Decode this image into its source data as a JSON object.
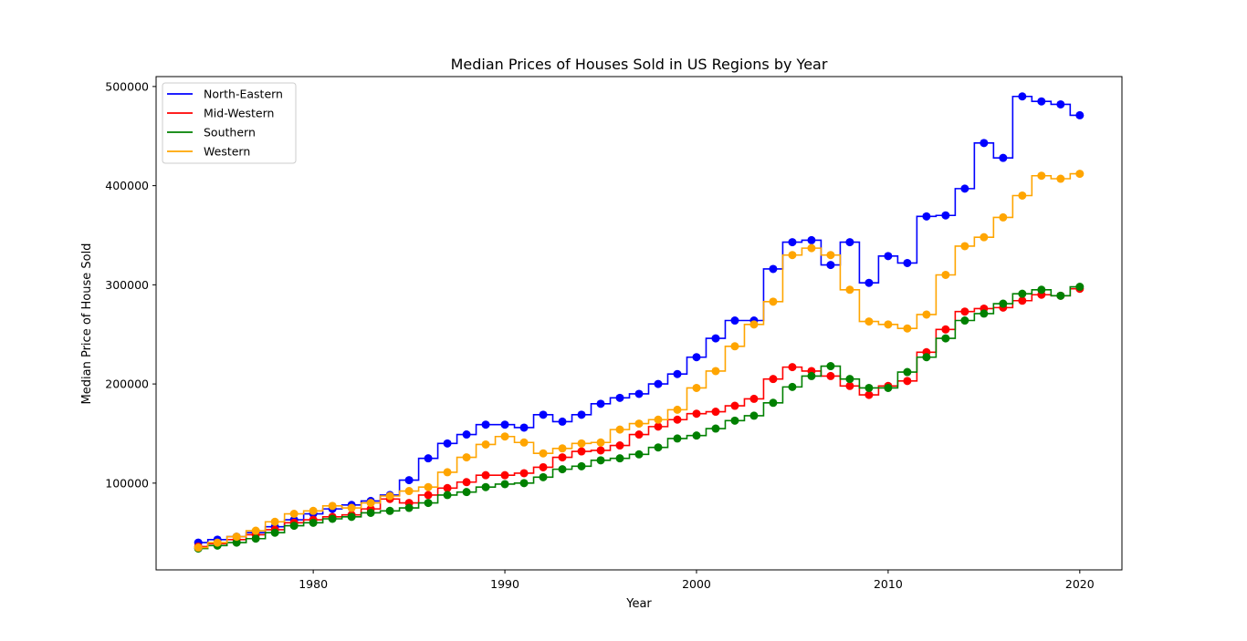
{
  "chart_data": {
    "type": "line",
    "title": "Median Prices of Houses Sold in US Regions by Year",
    "xlabel": "Year",
    "ylabel": "Median Price of House Sold",
    "xlim": [
      1971.8,
      2022.2
    ],
    "ylim": [
      12500,
      510000
    ],
    "xticks": [
      1980,
      1990,
      2000,
      2010,
      2020
    ],
    "yticks": [
      100000,
      200000,
      300000,
      400000,
      500000
    ],
    "legend_position": "top-left",
    "x": [
      1974,
      1975,
      1976,
      1977,
      1978,
      1979,
      1980,
      1981,
      1982,
      1983,
      1984,
      1985,
      1986,
      1987,
      1988,
      1989,
      1990,
      1991,
      1992,
      1993,
      1994,
      1995,
      1996,
      1997,
      1998,
      1999,
      2000,
      2001,
      2002,
      2003,
      2004,
      2005,
      2006,
      2007,
      2008,
      2009,
      2010,
      2011,
      2012,
      2013,
      2014,
      2015,
      2016,
      2017,
      2018,
      2019,
      2020
    ],
    "series": [
      {
        "name": "North-Eastern",
        "color": "#0000ff",
        "values": [
          40000,
          43000,
          46000,
          50000,
          56000,
          63000,
          69000,
          74000,
          78000,
          82000,
          88000,
          103000,
          125000,
          140000,
          149000,
          159000,
          159000,
          156000,
          169000,
          162000,
          169000,
          180000,
          186000,
          190000,
          200000,
          210000,
          227000,
          246000,
          264000,
          264000,
          316000,
          343000,
          345000,
          320000,
          343000,
          302000,
          329000,
          322000,
          369000,
          370000,
          397000,
          443000,
          428000,
          490000,
          485000,
          482000,
          471000
        ]
      },
      {
        "name": "Mid-Western",
        "color": "#ff0000",
        "values": [
          36000,
          39000,
          43000,
          48000,
          53000,
          60000,
          63000,
          66000,
          68000,
          74000,
          84000,
          80000,
          88000,
          95000,
          101000,
          108000,
          108000,
          110000,
          116000,
          126000,
          132000,
          133000,
          138000,
          149000,
          157000,
          164000,
          170000,
          172000,
          178000,
          185000,
          205000,
          217000,
          213000,
          208000,
          198000,
          189000,
          198000,
          203000,
          232000,
          255000,
          273000,
          276000,
          277000,
          284000,
          290000,
          289000,
          296000
        ]
      },
      {
        "name": "Southern",
        "color": "#008000",
        "values": [
          34000,
          37000,
          40000,
          44000,
          50000,
          57000,
          60000,
          64000,
          66000,
          70000,
          72000,
          75000,
          80000,
          88000,
          91000,
          96000,
          99000,
          100000,
          106000,
          114000,
          117000,
          123000,
          125000,
          129000,
          136000,
          145000,
          148000,
          155000,
          163000,
          168000,
          181000,
          197000,
          208000,
          218000,
          205000,
          196000,
          196000,
          212000,
          227000,
          246000,
          264000,
          271000,
          281000,
          291000,
          295000,
          289000,
          298000
        ]
      },
      {
        "name": "Western",
        "color": "#ffa500",
        "values": [
          35000,
          40000,
          46000,
          52000,
          61000,
          69000,
          72000,
          77000,
          75000,
          80000,
          87000,
          92000,
          96000,
          111000,
          126000,
          139000,
          147000,
          141000,
          130000,
          135000,
          140000,
          141000,
          154000,
          160000,
          164000,
          174000,
          196000,
          213000,
          238000,
          260000,
          283000,
          330000,
          337000,
          330000,
          295000,
          263000,
          260000,
          256000,
          270000,
          310000,
          339000,
          348000,
          368000,
          390000,
          410000,
          407000,
          412000
        ]
      }
    ]
  }
}
